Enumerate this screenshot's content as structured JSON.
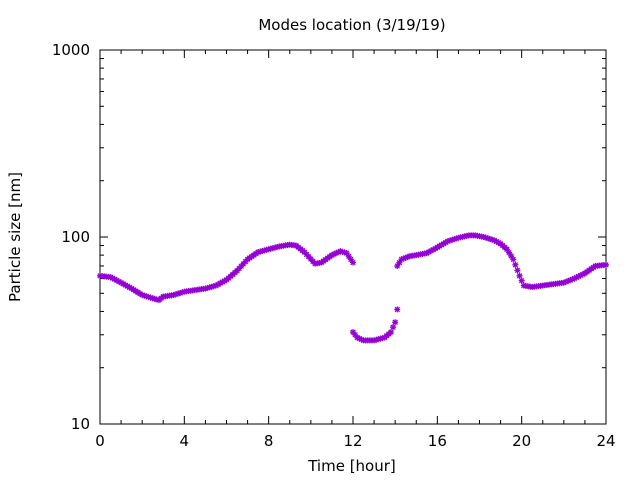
{
  "chart_data": {
    "type": "scatter",
    "title": "Modes location (3/19/19)",
    "xlabel": "Time [hour]",
    "ylabel": "Particle size [nm]",
    "xlim": [
      0,
      24
    ],
    "ylim": [
      10,
      1000
    ],
    "yscale": "log",
    "grid": false,
    "legend": "none",
    "x_ticks": [
      0,
      4,
      8,
      12,
      16,
      20,
      24
    ],
    "x_tick_labels": [
      "0",
      "4",
      "8",
      "12",
      "16",
      "20",
      "24"
    ],
    "y_ticks": [
      10,
      100,
      1000
    ],
    "y_tick_labels": [
      "10",
      "100",
      "1000"
    ],
    "color": "#9400d3",
    "marker": "star",
    "series": [
      {
        "keypoints": [
          [
            0.0,
            62
          ],
          [
            0.5,
            61
          ],
          [
            1.0,
            57
          ],
          [
            1.5,
            53
          ],
          [
            2.0,
            49
          ],
          [
            2.5,
            47
          ],
          [
            2.8,
            46
          ],
          [
            3.0,
            48
          ],
          [
            3.5,
            49
          ],
          [
            4.0,
            51
          ],
          [
            4.5,
            52
          ],
          [
            5.0,
            53
          ],
          [
            5.5,
            55
          ],
          [
            6.0,
            59
          ],
          [
            6.5,
            66
          ],
          [
            7.0,
            76
          ],
          [
            7.5,
            83
          ],
          [
            8.0,
            86
          ],
          [
            8.5,
            89
          ],
          [
            9.0,
            91
          ],
          [
            9.3,
            90
          ],
          [
            9.7,
            83
          ],
          [
            10.2,
            72
          ],
          [
            10.5,
            73
          ],
          [
            11.0,
            80
          ],
          [
            11.4,
            84
          ],
          [
            11.7,
            82
          ],
          [
            12.0,
            73
          ]
        ]
      },
      {
        "keypoints": [
          [
            12.0,
            31
          ],
          [
            12.2,
            29
          ],
          [
            12.5,
            28
          ],
          [
            13.0,
            28
          ],
          [
            13.5,
            29
          ],
          [
            13.8,
            31
          ],
          [
            14.0,
            35
          ],
          [
            14.1,
            41
          ]
        ]
      },
      {
        "keypoints": [
          [
            14.1,
            70
          ],
          [
            14.3,
            76
          ],
          [
            14.7,
            79
          ],
          [
            15.0,
            80
          ],
          [
            15.5,
            82
          ],
          [
            16.0,
            88
          ],
          [
            16.5,
            95
          ],
          [
            17.0,
            99
          ],
          [
            17.5,
            102
          ],
          [
            17.8,
            102
          ],
          [
            18.2,
            100
          ],
          [
            18.7,
            96
          ],
          [
            19.0,
            92
          ],
          [
            19.3,
            86
          ],
          [
            19.6,
            76
          ],
          [
            19.9,
            62
          ],
          [
            20.1,
            55
          ],
          [
            20.5,
            54
          ],
          [
            21.0,
            55
          ],
          [
            21.5,
            56
          ],
          [
            22.0,
            57
          ],
          [
            22.5,
            60
          ],
          [
            23.0,
            64
          ],
          [
            23.5,
            70
          ],
          [
            24.0,
            71
          ]
        ]
      }
    ]
  }
}
